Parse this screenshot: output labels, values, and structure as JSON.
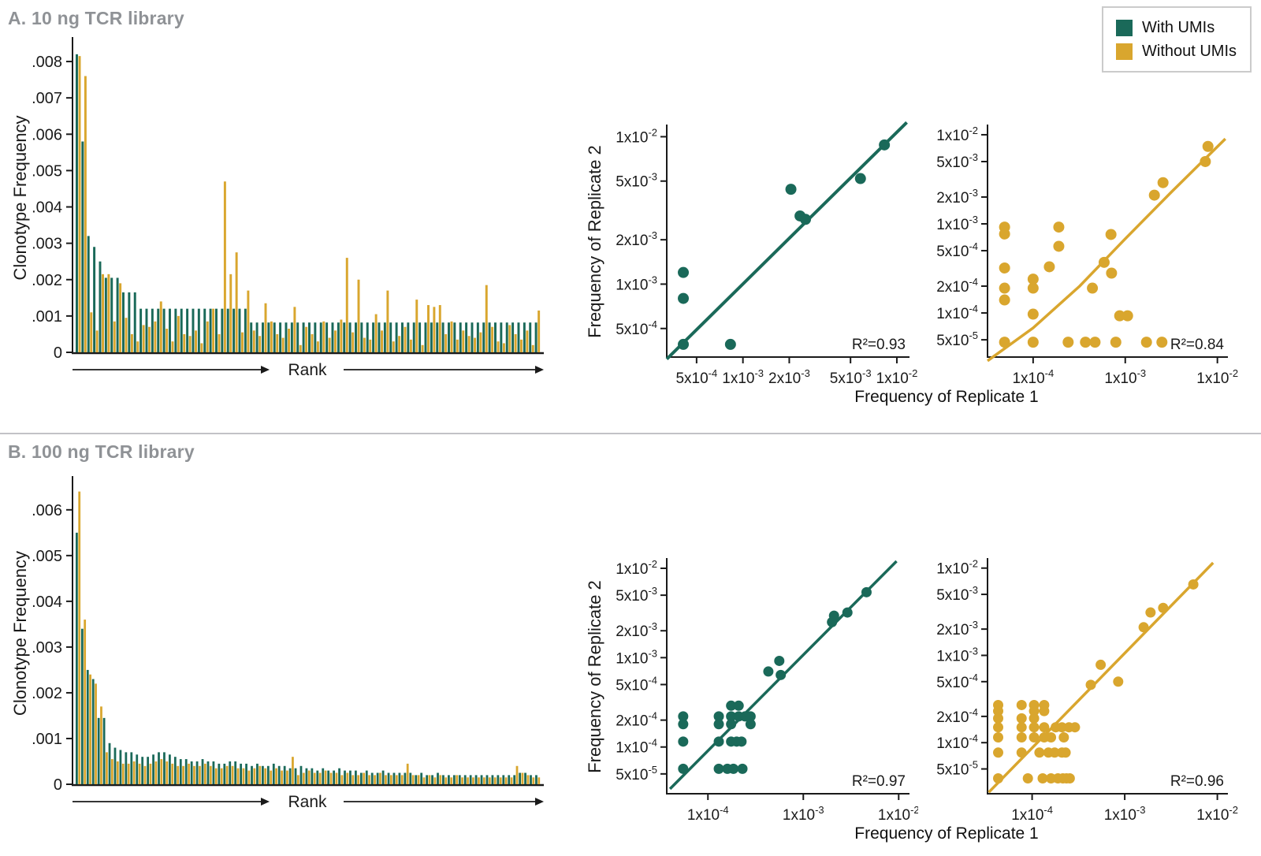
{
  "colors": {
    "with_umis_green": "#1A6959",
    "without_umis_gold": "#D9A62E",
    "title_gray": "#8f9296",
    "axis_black": "#1a1a1a",
    "divider_gray": "#c2c2c6"
  },
  "legend": {
    "items": [
      {
        "label": "With UMIs",
        "color": "#1A6959"
      },
      {
        "label": "Without UMIs",
        "color": "#D9A62E"
      }
    ]
  },
  "panelA": {
    "title": "A. 10 ng TCR library",
    "xlabel_shared": "Frequency of Replicate 1"
  },
  "panelB": {
    "title": "B. 100 ng TCR library",
    "xlabel_shared": "Frequency of Replicate 1"
  },
  "chart_data": [
    {
      "id": "bar-a",
      "type": "bar",
      "panel": "A",
      "title": "A. 10 ng TCR library",
      "ylabel": "Clonotype Frequency",
      "xlabel": "Rank",
      "ylim": [
        0,
        0.0085
      ],
      "yticks": [
        0,
        0.001,
        0.002,
        0.003,
        0.004,
        0.005,
        0.006,
        0.007,
        0.008
      ],
      "series": [
        {
          "name": "With UMIs",
          "color": "#1A6959",
          "values": [
            0.0082,
            0.0058,
            0.0032,
            0.0029,
            0.0025,
            0.00205,
            0.00205,
            0.00205,
            0.00165,
            0.00165,
            0.00165,
            0.0012,
            0.0012,
            0.0012,
            0.0012,
            0.0012,
            0.0012,
            0.0012,
            0.0012,
            0.0012,
            0.0012,
            0.0012,
            0.0012,
            0.0012,
            0.0012,
            0.0012,
            0.0012,
            0.0012,
            0.0012,
            0.0012,
            0.00082,
            0.00082,
            0.00082,
            0.00082,
            0.00082,
            0.00082,
            0.00082,
            0.00082,
            0.00082,
            0.00082,
            0.00082,
            0.00082,
            0.00082,
            0.00082,
            0.00082,
            0.00082,
            0.00082,
            0.00082,
            0.00082,
            0.00082,
            0.00082,
            0.00082,
            0.00082,
            0.00082,
            0.00082,
            0.00082,
            0.00082,
            0.00082,
            0.00082,
            0.00082,
            0.00082,
            0.00082,
            0.00082,
            0.00082,
            0.00082,
            0.00082,
            0.00082,
            0.00082,
            0.00082,
            0.00082,
            0.00082,
            0.00082,
            0.00082,
            0.00082,
            0.00082,
            0.00082,
            0.00082,
            0.00082,
            0.00082,
            0.00082
          ]
        },
        {
          "name": "Without UMIs",
          "color": "#D9A62E",
          "values": [
            0.00815,
            0.0076,
            0.0011,
            0.0006,
            0.00215,
            0.00215,
            0.00085,
            0.0019,
            0.00095,
            0.0005,
            0.0003,
            0.00075,
            0.0007,
            0.00085,
            0.0014,
            0.00065,
            0.0003,
            0.001,
            0.0005,
            0.00045,
            0.0006,
            0.00025,
            0.00085,
            0.0012,
            0.0005,
            0.0047,
            0.00215,
            0.00275,
            0.00055,
            0.0017,
            0.0006,
            0.00045,
            0.00135,
            0.00085,
            0.0005,
            0.0004,
            0.00065,
            0.00125,
            0.0002,
            0.0007,
            0.0005,
            0.0003,
            0.00085,
            0.0004,
            0.0006,
            0.0009,
            0.0026,
            0.00055,
            0.002,
            0.0004,
            0.00035,
            0.00105,
            0.0006,
            0.0017,
            0.0003,
            0.00045,
            0.0007,
            0.00035,
            0.00145,
            0.0002,
            0.0013,
            0.00125,
            0.0013,
            0.0005,
            0.00085,
            0.00035,
            0.0006,
            0.00045,
            0.0004,
            0.00055,
            0.00185,
            0.0007,
            0.0003,
            0.00025,
            0.00075,
            0.0005,
            0.00035,
            0.0006,
            0.0002,
            0.00115
          ]
        }
      ]
    },
    {
      "id": "scatter-a-green",
      "type": "scatter",
      "panel": "A",
      "series_name": "With UMIs",
      "color": "#1A6959",
      "r2_label": "R²=0.93",
      "ylabel": "Frequency of Replicate 2",
      "xlim": [
        0.00032,
        0.0118
      ],
      "ylim": [
        0.00032,
        0.0118
      ],
      "xticks": [
        0.0005,
        0.001,
        0.002,
        0.005,
        0.01
      ],
      "yticks": [
        0.0005,
        0.001,
        0.002,
        0.005,
        0.01
      ],
      "points": [
        [
          0.00041,
          0.0012
        ],
        [
          0.00041,
          0.0008
        ],
        [
          0.00041,
          0.00039
        ],
        [
          0.00083,
          0.00039
        ],
        [
          0.00205,
          0.0044
        ],
        [
          0.00235,
          0.0029
        ],
        [
          0.00255,
          0.00275
        ],
        [
          0.0058,
          0.0052
        ],
        [
          0.0083,
          0.0088
        ]
      ],
      "line": [
        [
          0.00032,
          0.00031
        ],
        [
          0.0116,
          0.0125
        ]
      ]
    },
    {
      "id": "scatter-a-gold",
      "type": "scatter",
      "panel": "A",
      "series_name": "Without UMIs",
      "color": "#D9A62E",
      "r2_label": "R²=0.84",
      "xlim": [
        3.2e-05,
        0.0125
      ],
      "ylim": [
        3.2e-05,
        0.0125
      ],
      "xticks": [
        0.0001,
        0.001,
        0.01
      ],
      "yticks": [
        5e-05,
        0.0001,
        0.0002,
        0.0005,
        0.001,
        0.002,
        0.005,
        0.01
      ],
      "points": [
        [
          4.9e-05,
          0.00092
        ],
        [
          4.9e-05,
          0.00077
        ],
        [
          4.9e-05,
          0.00032
        ],
        [
          4.9e-05,
          0.00019
        ],
        [
          4.9e-05,
          0.00014
        ],
        [
          4.9e-05,
          4.7e-05
        ],
        [
          0.0001,
          0.00024
        ],
        [
          0.0001,
          0.00019
        ],
        [
          0.0001,
          9.7e-05
        ],
        [
          0.0001,
          4.7e-05
        ],
        [
          0.00015,
          0.00033
        ],
        [
          0.00019,
          0.00092
        ],
        [
          0.00019,
          0.00056
        ],
        [
          0.00024,
          4.7e-05
        ],
        [
          0.00037,
          4.7e-05
        ],
        [
          0.00044,
          0.00019
        ],
        [
          0.00047,
          4.7e-05
        ],
        [
          0.00059,
          0.00037
        ],
        [
          0.0007,
          0.00076
        ],
        [
          0.00071,
          0.00028
        ],
        [
          0.00079,
          4.7e-05
        ],
        [
          0.00087,
          9.3e-05
        ],
        [
          0.00106,
          9.3e-05
        ],
        [
          0.0017,
          4.7e-05
        ],
        [
          0.00207,
          0.0021
        ],
        [
          0.0025,
          4.7e-05
        ],
        [
          0.00257,
          0.0029
        ],
        [
          0.0074,
          0.005
        ],
        [
          0.0079,
          0.0074
        ]
      ],
      "line": [
        [
          3.2e-05,
          2.9e-05
        ],
        [
          0.0001,
          6.8e-05
        ],
        [
          0.00032,
          0.0002
        ],
        [
          0.001,
          0.00068
        ],
        [
          0.0032,
          0.0023
        ],
        [
          0.0122,
          0.009
        ]
      ]
    },
    {
      "id": "bar-b",
      "type": "bar",
      "panel": "B",
      "title": "B. 100 ng TCR library",
      "ylabel": "Clonotype Frequency",
      "xlabel": "Rank",
      "ylim": [
        0,
        0.0066
      ],
      "yticks": [
        0,
        0.001,
        0.002,
        0.003,
        0.004,
        0.005,
        0.006
      ],
      "series": [
        {
          "name": "With UMIs",
          "color": "#1A6959",
          "values": [
            0.0055,
            0.0034,
            0.0025,
            0.0023,
            0.00145,
            0.00145,
            0.0009,
            0.0008,
            0.00075,
            0.0007,
            0.0007,
            0.00065,
            0.0006,
            0.0006,
            0.00065,
            0.0007,
            0.0007,
            0.00065,
            0.0006,
            0.00055,
            0.00055,
            0.0005,
            0.0005,
            0.00055,
            0.0005,
            0.0005,
            0.00045,
            0.00045,
            0.0005,
            0.0005,
            0.00045,
            0.00045,
            0.0004,
            0.00045,
            0.0004,
            0.0004,
            0.00045,
            0.0004,
            0.0004,
            0.00035,
            0.00035,
            0.0004,
            0.00035,
            0.00035,
            0.0003,
            0.00035,
            0.0003,
            0.0003,
            0.00035,
            0.0003,
            0.0003,
            0.0003,
            0.00025,
            0.0003,
            0.00025,
            0.00025,
            0.0003,
            0.00025,
            0.00025,
            0.00025,
            0.00025,
            0.00025,
            0.0002,
            0.00025,
            0.0002,
            0.0002,
            0.00025,
            0.0002,
            0.0002,
            0.0002,
            0.0002,
            0.0002,
            0.0002,
            0.0002,
            0.0002,
            0.0002,
            0.0002,
            0.0002,
            0.0002,
            0.0002,
            0.0002,
            0.00025,
            0.00025,
            0.0002,
            0.0002
          ]
        },
        {
          "name": "Without UMIs",
          "color": "#D9A62E",
          "values": [
            0.0064,
            0.0036,
            0.0024,
            0.0022,
            0.0017,
            0.0007,
            0.00055,
            0.0005,
            0.00045,
            0.00045,
            0.0005,
            0.00045,
            0.0004,
            0.00045,
            0.0005,
            0.00055,
            0.0005,
            0.00045,
            0.0004,
            0.0004,
            0.00045,
            0.0004,
            0.0004,
            0.00045,
            0.0004,
            0.00035,
            0.00035,
            0.0004,
            0.0004,
            0.00035,
            0.00035,
            0.0003,
            0.00035,
            0.0004,
            0.00035,
            0.0003,
            0.00035,
            0.0003,
            0.0003,
            0.0006,
            0.0002,
            0.00025,
            0.0003,
            0.00025,
            0.00025,
            0.0003,
            0.00025,
            0.00025,
            0.0002,
            0.00025,
            0.0002,
            0.0002,
            0.00025,
            0.0002,
            0.0002,
            0.00025,
            0.0002,
            0.0002,
            0.0002,
            0.0002,
            0.00045,
            0.0002,
            0.0002,
            0.00015,
            0.0002,
            0.00015,
            0.0002,
            0.00015,
            0.00015,
            0.0002,
            0.00015,
            0.00015,
            0.00015,
            0.00015,
            0.00015,
            0.00015,
            0.00015,
            0.00015,
            0.00015,
            0.00015,
            0.0004,
            0.00025,
            0.0002,
            0.00015,
            0.00015
          ]
        }
      ]
    },
    {
      "id": "scatter-b-green",
      "type": "scatter",
      "panel": "B",
      "series_name": "With UMIs",
      "color": "#1A6959",
      "r2_label": "R²=0.97",
      "ylabel": "Frequency of Replicate 2",
      "xlim": [
        3.7e-05,
        0.0125
      ],
      "ylim": [
        3e-05,
        0.0125
      ],
      "xticks": [
        0.0001,
        0.001,
        0.01
      ],
      "yticks": [
        5e-05,
        0.0001,
        0.0002,
        0.0005,
        0.001,
        0.002,
        0.005,
        0.01
      ],
      "points": [
        [
          0.000175,
          0.00029
        ],
        [
          0.00021,
          0.00029
        ],
        [
          5.5e-05,
          0.00022
        ],
        [
          0.00013,
          0.00022
        ],
        [
          0.000175,
          0.00022
        ],
        [
          0.00021,
          0.00022
        ],
        [
          0.000245,
          0.00022
        ],
        [
          0.00028,
          0.00022
        ],
        [
          5.5e-05,
          0.00018
        ],
        [
          0.00013,
          0.00018
        ],
        [
          0.000175,
          0.00018
        ],
        [
          0.00028,
          0.00018
        ],
        [
          5.5e-05,
          0.000115
        ],
        [
          0.00013,
          0.000115
        ],
        [
          0.000175,
          0.000115
        ],
        [
          0.0002,
          0.000115
        ],
        [
          0.000225,
          0.000115
        ],
        [
          5.5e-05,
          5.7e-05
        ],
        [
          0.00013,
          5.7e-05
        ],
        [
          0.00016,
          5.7e-05
        ],
        [
          0.000185,
          5.7e-05
        ],
        [
          0.00023,
          5.7e-05
        ],
        [
          0.00043,
          0.0007
        ],
        [
          0.00056,
          0.00092
        ],
        [
          0.00058,
          0.00064
        ],
        [
          0.002,
          0.0025
        ],
        [
          0.0021,
          0.00295
        ],
        [
          0.0029,
          0.0032
        ],
        [
          0.0046,
          0.0054
        ]
      ],
      "line": [
        [
          4e-05,
          3.4e-05
        ],
        [
          0.0095,
          0.012
        ]
      ]
    },
    {
      "id": "scatter-b-gold",
      "type": "scatter",
      "panel": "B",
      "series_name": "Without UMIs",
      "color": "#D9A62E",
      "r2_label": "R²=0.96",
      "xlim": [
        3.3e-05,
        0.0125
      ],
      "ylim": [
        2.6e-05,
        0.0125
      ],
      "xticks": [
        0.0001,
        0.001,
        0.01
      ],
      "yticks": [
        5e-05,
        0.0001,
        0.0002,
        0.0005,
        0.001,
        0.002,
        0.005,
        0.01
      ],
      "points": [
        [
          4.3e-05,
          0.00027
        ],
        [
          7.7e-05,
          0.00027
        ],
        [
          0.000105,
          0.00027
        ],
        [
          0.000135,
          0.00027
        ],
        [
          4.3e-05,
          0.00023
        ],
        [
          0.000105,
          0.00023
        ],
        [
          0.000135,
          0.00023
        ],
        [
          4.3e-05,
          0.00019
        ],
        [
          7.7e-05,
          0.00019
        ],
        [
          0.000105,
          0.00019
        ],
        [
          4.3e-05,
          0.00015
        ],
        [
          7.7e-05,
          0.00015
        ],
        [
          0.000105,
          0.00015
        ],
        [
          0.000135,
          0.00015
        ],
        [
          0.00018,
          0.00015
        ],
        [
          0.00021,
          0.00015
        ],
        [
          0.00025,
          0.00015
        ],
        [
          0.00029,
          0.00015
        ],
        [
          4.3e-05,
          0.000115
        ],
        [
          7.7e-05,
          0.000115
        ],
        [
          0.000105,
          0.000115
        ],
        [
          0.000135,
          0.000115
        ],
        [
          0.00016,
          0.000115
        ],
        [
          0.00022,
          0.000115
        ],
        [
          4.3e-05,
          7.7e-05
        ],
        [
          7.7e-05,
          7.7e-05
        ],
        [
          0.00012,
          7.7e-05
        ],
        [
          0.00015,
          7.7e-05
        ],
        [
          0.000175,
          7.7e-05
        ],
        [
          0.00021,
          7.7e-05
        ],
        [
          0.00023,
          7.7e-05
        ],
        [
          4.3e-05,
          3.9e-05
        ],
        [
          9e-05,
          3.9e-05
        ],
        [
          0.00013,
          3.9e-05
        ],
        [
          0.00016,
          3.9e-05
        ],
        [
          0.00019,
          3.9e-05
        ],
        [
          0.000215,
          3.9e-05
        ],
        [
          0.000235,
          3.9e-05
        ],
        [
          0.000255,
          3.9e-05
        ],
        [
          0.00043,
          0.00046
        ],
        [
          0.00055,
          0.00078
        ],
        [
          0.00085,
          0.0005
        ],
        [
          0.0016,
          0.0021
        ],
        [
          0.0019,
          0.0031
        ],
        [
          0.0026,
          0.0035
        ],
        [
          0.0055,
          0.0065
        ]
      ],
      "line": [
        [
          3.4e-05,
          2.7e-05
        ],
        [
          0.009,
          0.0115
        ]
      ]
    }
  ]
}
